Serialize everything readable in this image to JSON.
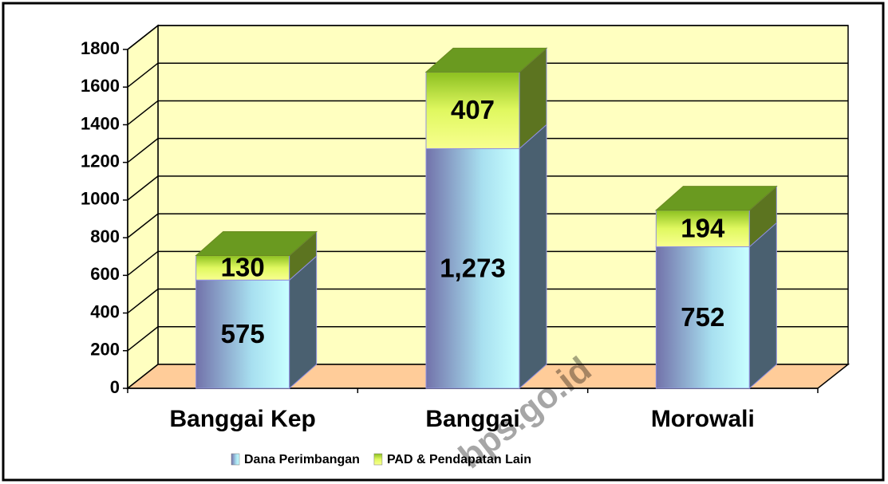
{
  "chart_data": {
    "type": "bar3d_stacked",
    "categories": [
      "Banggai Kep",
      "Banggai",
      "Morowali"
    ],
    "series": [
      {
        "name": "Dana Perimbangan",
        "color": "#8a8ac8",
        "values": [
          575,
          1273,
          752
        ],
        "value_labels": [
          "575",
          "1,273",
          "752"
        ]
      },
      {
        "name": "PAD & Pendapatan Lain",
        "color": "#c8f040",
        "values": [
          130,
          407,
          194
        ]
      }
    ],
    "ylim": [
      0,
      1800
    ],
    "yticks": [
      0,
      200,
      400,
      600,
      800,
      1000,
      1200,
      1400,
      1600,
      1800
    ],
    "grid": true,
    "legend": "bottom",
    "watermark": "bps.go.id"
  }
}
